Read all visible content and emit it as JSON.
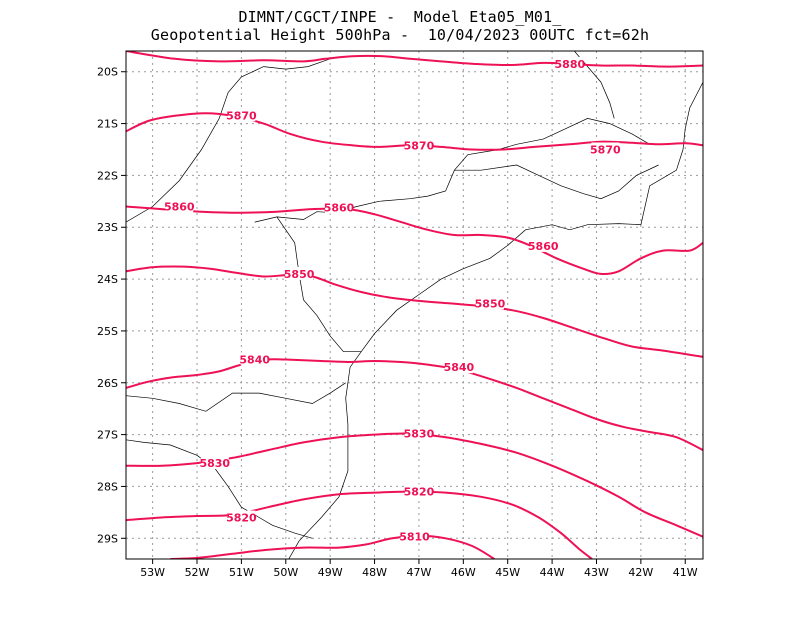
{
  "title": {
    "line1": "DIMNT/CGCT/INPE -  Model Eta05_M01_",
    "line2": "Geopotential Height 500hPa -  10/04/2023 00UTC fct=62h"
  },
  "colors": {
    "contour": "#ee1155",
    "coast": "#000000",
    "grid": "#9a9a9a"
  },
  "axes": {
    "lon_labels": [
      "53W",
      "52W",
      "51W",
      "50W",
      "49W",
      "48W",
      "47W",
      "46W",
      "45W",
      "44W",
      "43W",
      "42W",
      "41W"
    ],
    "lon_values": [
      -53,
      -52,
      -51,
      -50,
      -49,
      -48,
      -47,
      -46,
      -45,
      -44,
      -43,
      -42,
      -41
    ],
    "lat_labels": [
      "20S",
      "21S",
      "22S",
      "23S",
      "24S",
      "25S",
      "26S",
      "27S",
      "28S",
      "29S"
    ],
    "lat_values": [
      -20,
      -21,
      -22,
      -23,
      -24,
      -25,
      -26,
      -27,
      -28,
      -29
    ],
    "lon_range": [
      -53.6,
      -40.6
    ],
    "lat_range": [
      -29.4,
      -19.6
    ]
  },
  "chart_data": {
    "type": "contour",
    "variable": "Geopotential Height 500hPa",
    "contours": [
      {
        "value": 5880,
        "label": "5880",
        "points": [
          [
            -53.6,
            -19.6
          ],
          [
            -52.5,
            -19.75
          ],
          [
            -51.5,
            -19.8
          ],
          [
            -50.5,
            -19.78
          ],
          [
            -49.6,
            -19.8
          ],
          [
            -49.1,
            -19.75
          ],
          [
            -48.5,
            -19.7
          ],
          [
            -47.8,
            -19.7
          ],
          [
            -47.2,
            -19.75
          ],
          [
            -46.5,
            -19.8
          ],
          [
            -45.7,
            -19.85
          ],
          [
            -44.9,
            -19.87
          ],
          [
            -44.2,
            -19.83
          ],
          [
            -43.6,
            -19.85
          ],
          [
            -42.9,
            -19.88
          ],
          [
            -42.2,
            -19.88
          ],
          [
            -41.4,
            -19.9
          ],
          [
            -40.6,
            -19.88
          ]
        ],
        "labels_at": [
          [
            -43.6,
            -19.85
          ]
        ]
      },
      {
        "value": 5870,
        "label": "5870",
        "points": [
          [
            -53.6,
            -21.15
          ],
          [
            -53.1,
            -20.95
          ],
          [
            -52.5,
            -20.85
          ],
          [
            -51.8,
            -20.8
          ],
          [
            -51.2,
            -20.85
          ],
          [
            -50.5,
            -21.0
          ],
          [
            -49.9,
            -21.2
          ],
          [
            -49.2,
            -21.35
          ],
          [
            -48.5,
            -21.42
          ],
          [
            -47.9,
            -21.45
          ],
          [
            -47.2,
            -21.42
          ],
          [
            -46.5,
            -21.45
          ],
          [
            -45.8,
            -21.5
          ],
          [
            -45.1,
            -21.5
          ],
          [
            -44.4,
            -21.45
          ],
          [
            -43.6,
            -21.4
          ],
          [
            -42.9,
            -21.35
          ],
          [
            -42.2,
            -21.37
          ],
          [
            -41.6,
            -21.4
          ],
          [
            -41.0,
            -21.38
          ],
          [
            -40.6,
            -21.42
          ]
        ],
        "labels_at": [
          [
            -51.0,
            -20.84
          ],
          [
            -47.0,
            -21.42
          ],
          [
            -42.8,
            -21.5
          ]
        ]
      },
      {
        "value": 5860,
        "label": "5860",
        "points": [
          [
            -53.6,
            -22.6
          ],
          [
            -52.8,
            -22.65
          ],
          [
            -51.9,
            -22.7
          ],
          [
            -51.0,
            -22.72
          ],
          [
            -50.2,
            -22.7
          ],
          [
            -49.4,
            -22.65
          ],
          [
            -48.6,
            -22.65
          ],
          [
            -48.0,
            -22.75
          ],
          [
            -47.4,
            -22.9
          ],
          [
            -46.8,
            -23.05
          ],
          [
            -46.2,
            -23.15
          ],
          [
            -45.6,
            -23.15
          ],
          [
            -45.0,
            -23.2
          ],
          [
            -44.5,
            -23.35
          ],
          [
            -43.9,
            -23.6
          ],
          [
            -43.3,
            -23.8
          ],
          [
            -42.9,
            -23.9
          ],
          [
            -42.5,
            -23.85
          ],
          [
            -42.0,
            -23.6
          ],
          [
            -41.5,
            -23.45
          ],
          [
            -40.9,
            -23.45
          ],
          [
            -40.6,
            -23.3
          ]
        ],
        "labels_at": [
          [
            -52.4,
            -22.6
          ],
          [
            -48.8,
            -22.62
          ],
          [
            -44.2,
            -23.36
          ]
        ]
      },
      {
        "value": 5850,
        "label": "5850",
        "points": [
          [
            -53.6,
            -23.85
          ],
          [
            -53.0,
            -23.77
          ],
          [
            -52.3,
            -23.76
          ],
          [
            -51.7,
            -23.8
          ],
          [
            -51.1,
            -23.88
          ],
          [
            -50.5,
            -23.95
          ],
          [
            -49.9,
            -23.92
          ],
          [
            -49.4,
            -23.95
          ],
          [
            -48.9,
            -24.1
          ],
          [
            -48.3,
            -24.25
          ],
          [
            -47.7,
            -24.35
          ],
          [
            -47.0,
            -24.42
          ],
          [
            -46.3,
            -24.47
          ],
          [
            -45.6,
            -24.52
          ],
          [
            -44.9,
            -24.6
          ],
          [
            -44.2,
            -24.75
          ],
          [
            -43.5,
            -24.95
          ],
          [
            -42.8,
            -25.15
          ],
          [
            -42.2,
            -25.3
          ],
          [
            -41.5,
            -25.38
          ],
          [
            -40.6,
            -25.5
          ]
        ],
        "labels_at": [
          [
            -49.7,
            -23.9
          ],
          [
            -45.4,
            -24.47
          ]
        ]
      },
      {
        "value": 5840,
        "label": "5840",
        "points": [
          [
            -53.6,
            -26.1
          ],
          [
            -53.1,
            -25.98
          ],
          [
            -52.6,
            -25.9
          ],
          [
            -52.0,
            -25.85
          ],
          [
            -51.5,
            -25.78
          ],
          [
            -51.0,
            -25.65
          ],
          [
            -50.4,
            -25.55
          ],
          [
            -49.8,
            -25.56
          ],
          [
            -49.2,
            -25.58
          ],
          [
            -48.6,
            -25.6
          ],
          [
            -48.0,
            -25.58
          ],
          [
            -47.4,
            -25.6
          ],
          [
            -46.8,
            -25.65
          ],
          [
            -46.1,
            -25.75
          ],
          [
            -45.5,
            -25.9
          ],
          [
            -44.8,
            -26.1
          ],
          [
            -44.2,
            -26.3
          ],
          [
            -43.6,
            -26.5
          ],
          [
            -43.0,
            -26.7
          ],
          [
            -42.4,
            -26.85
          ],
          [
            -41.8,
            -26.95
          ],
          [
            -41.2,
            -27.05
          ],
          [
            -40.6,
            -27.3
          ]
        ],
        "labels_at": [
          [
            -50.7,
            -25.55
          ],
          [
            -46.1,
            -25.7
          ]
        ]
      },
      {
        "value": 5830,
        "label": "5830",
        "points": [
          [
            -53.6,
            -27.6
          ],
          [
            -52.8,
            -27.6
          ],
          [
            -52.0,
            -27.55
          ],
          [
            -51.2,
            -27.45
          ],
          [
            -50.4,
            -27.3
          ],
          [
            -49.6,
            -27.15
          ],
          [
            -48.8,
            -27.05
          ],
          [
            -48.0,
            -27.0
          ],
          [
            -47.2,
            -26.98
          ],
          [
            -46.4,
            -27.05
          ],
          [
            -45.6,
            -27.18
          ],
          [
            -44.8,
            -27.35
          ],
          [
            -44.0,
            -27.6
          ],
          [
            -43.2,
            -27.9
          ],
          [
            -42.5,
            -28.2
          ],
          [
            -41.9,
            -28.5
          ],
          [
            -41.2,
            -28.75
          ],
          [
            -40.6,
            -28.97
          ]
        ],
        "labels_at": [
          [
            -47.0,
            -26.98
          ],
          [
            -51.6,
            -27.55
          ]
        ]
      },
      {
        "value": 5820,
        "label": "5820",
        "points": [
          [
            -53.6,
            -28.65
          ],
          [
            -52.8,
            -28.6
          ],
          [
            -52.0,
            -28.57
          ],
          [
            -51.2,
            -28.55
          ],
          [
            -50.4,
            -28.4
          ],
          [
            -49.6,
            -28.25
          ],
          [
            -48.8,
            -28.15
          ],
          [
            -48.0,
            -28.12
          ],
          [
            -47.2,
            -28.1
          ],
          [
            -46.4,
            -28.12
          ],
          [
            -45.6,
            -28.2
          ],
          [
            -44.9,
            -28.35
          ],
          [
            -44.3,
            -28.6
          ],
          [
            -43.8,
            -28.9
          ],
          [
            -43.4,
            -29.2
          ],
          [
            -43.1,
            -29.4
          ]
        ],
        "labels_at": [
          [
            -47.0,
            -28.1
          ],
          [
            -51.0,
            -28.6
          ]
        ]
      },
      {
        "value": 5810,
        "label": "5810",
        "points": [
          [
            -52.6,
            -29.4
          ],
          [
            -52.0,
            -29.38
          ],
          [
            -51.2,
            -29.3
          ],
          [
            -50.4,
            -29.22
          ],
          [
            -49.6,
            -29.18
          ],
          [
            -48.8,
            -29.18
          ],
          [
            -48.2,
            -29.12
          ],
          [
            -47.6,
            -29.0
          ],
          [
            -47.0,
            -28.95
          ],
          [
            -46.4,
            -29.0
          ],
          [
            -45.8,
            -29.15
          ],
          [
            -45.3,
            -29.4
          ]
        ],
        "labels_at": [
          [
            -47.1,
            -28.97
          ]
        ]
      }
    ]
  },
  "coastlines": [
    {
      "name": "brazil-coast",
      "points": [
        [
          -40.6,
          -20.2
        ],
        [
          -40.9,
          -20.7
        ],
        [
          -41.0,
          -21.1
        ],
        [
          -41.05,
          -21.5
        ],
        [
          -41.2,
          -21.9
        ],
        [
          -41.8,
          -22.2
        ],
        [
          -42.0,
          -22.95
        ],
        [
          -42.5,
          -22.93
        ],
        [
          -43.2,
          -22.95
        ],
        [
          -43.6,
          -23.05
        ],
        [
          -44.0,
          -22.95
        ],
        [
          -44.6,
          -23.05
        ],
        [
          -45.0,
          -23.35
        ],
        [
          -45.4,
          -23.6
        ],
        [
          -46.0,
          -23.8
        ],
        [
          -46.5,
          -24.0
        ],
        [
          -47.0,
          -24.3
        ],
        [
          -47.5,
          -24.6
        ],
        [
          -48.0,
          -25.05
        ],
        [
          -48.3,
          -25.4
        ],
        [
          -48.55,
          -25.7
        ],
        [
          -48.6,
          -26.0
        ],
        [
          -48.65,
          -26.3
        ],
        [
          -48.6,
          -26.8
        ],
        [
          -48.6,
          -27.3
        ],
        [
          -48.6,
          -27.7
        ],
        [
          -48.8,
          -28.2
        ],
        [
          -49.2,
          -28.6
        ],
        [
          -49.7,
          -29.05
        ],
        [
          -50.0,
          -29.5
        ]
      ]
    },
    {
      "name": "border-1",
      "points": [
        [
          -53.6,
          -22.9
        ],
        [
          -53.0,
          -22.6
        ],
        [
          -52.4,
          -22.1
        ],
        [
          -51.9,
          -21.5
        ],
        [
          -51.5,
          -20.9
        ],
        [
          -51.3,
          -20.4
        ],
        [
          -51.0,
          -20.1
        ],
        [
          -50.5,
          -19.9
        ],
        [
          -50.0,
          -19.95
        ],
        [
          -49.5,
          -19.9
        ],
        [
          -49.0,
          -19.75
        ],
        [
          -48.6,
          -19.7
        ]
      ]
    },
    {
      "name": "border-2",
      "points": [
        [
          -50.7,
          -22.9
        ],
        [
          -50.2,
          -22.8
        ],
        [
          -49.6,
          -22.85
        ],
        [
          -49.3,
          -22.7
        ],
        [
          -48.9,
          -22.72
        ],
        [
          -48.4,
          -22.6
        ],
        [
          -47.9,
          -22.5
        ],
        [
          -47.2,
          -22.45
        ],
        [
          -46.8,
          -22.4
        ],
        [
          -46.4,
          -22.3
        ],
        [
          -46.2,
          -21.9
        ],
        [
          -45.9,
          -21.6
        ],
        [
          -45.2,
          -21.5
        ],
        [
          -44.8,
          -21.4
        ],
        [
          -44.2,
          -21.3
        ],
        [
          -43.7,
          -21.1
        ],
        [
          -43.2,
          -20.9
        ],
        [
          -42.7,
          -21.0
        ],
        [
          -42.2,
          -21.2
        ],
        [
          -41.8,
          -21.4
        ]
      ]
    },
    {
      "name": "border-3",
      "points": [
        [
          -50.2,
          -22.8
        ],
        [
          -49.8,
          -23.3
        ],
        [
          -49.7,
          -23.9
        ],
        [
          -49.6,
          -24.4
        ],
        [
          -49.3,
          -24.7
        ],
        [
          -49.0,
          -25.1
        ],
        [
          -48.7,
          -25.4
        ],
        [
          -48.3,
          -25.4
        ]
      ]
    },
    {
      "name": "border-4",
      "points": [
        [
          -53.6,
          -26.25
        ],
        [
          -53.0,
          -26.3
        ],
        [
          -52.4,
          -26.4
        ],
        [
          -51.8,
          -26.55
        ],
        [
          -51.2,
          -26.2
        ],
        [
          -50.6,
          -26.2
        ],
        [
          -50.0,
          -26.3
        ],
        [
          -49.4,
          -26.4
        ],
        [
          -49.0,
          -26.2
        ],
        [
          -48.65,
          -26.0
        ]
      ]
    },
    {
      "name": "border-5",
      "points": [
        [
          -53.6,
          -27.1
        ],
        [
          -53.2,
          -27.15
        ],
        [
          -52.6,
          -27.2
        ],
        [
          -52.0,
          -27.4
        ],
        [
          -51.6,
          -27.65
        ],
        [
          -51.3,
          -28.0
        ],
        [
          -51.0,
          -28.4
        ],
        [
          -50.6,
          -28.6
        ],
        [
          -50.3,
          -28.75
        ],
        [
          -49.8,
          -28.9
        ],
        [
          -49.4,
          -29.0
        ]
      ]
    },
    {
      "name": "border-6",
      "points": [
        [
          -46.2,
          -21.9
        ],
        [
          -45.6,
          -21.9
        ],
        [
          -44.8,
          -21.8
        ],
        [
          -44.3,
          -22.0
        ],
        [
          -43.8,
          -22.2
        ],
        [
          -43.3,
          -22.35
        ],
        [
          -42.9,
          -22.45
        ],
        [
          -42.5,
          -22.3
        ],
        [
          -42.1,
          -22.0
        ],
        [
          -41.6,
          -21.8
        ]
      ]
    },
    {
      "name": "border-7",
      "points": [
        [
          -43.5,
          -19.6
        ],
        [
          -43.2,
          -19.9
        ],
        [
          -42.9,
          -20.2
        ],
        [
          -42.7,
          -20.6
        ],
        [
          -42.6,
          -20.9
        ]
      ]
    }
  ]
}
